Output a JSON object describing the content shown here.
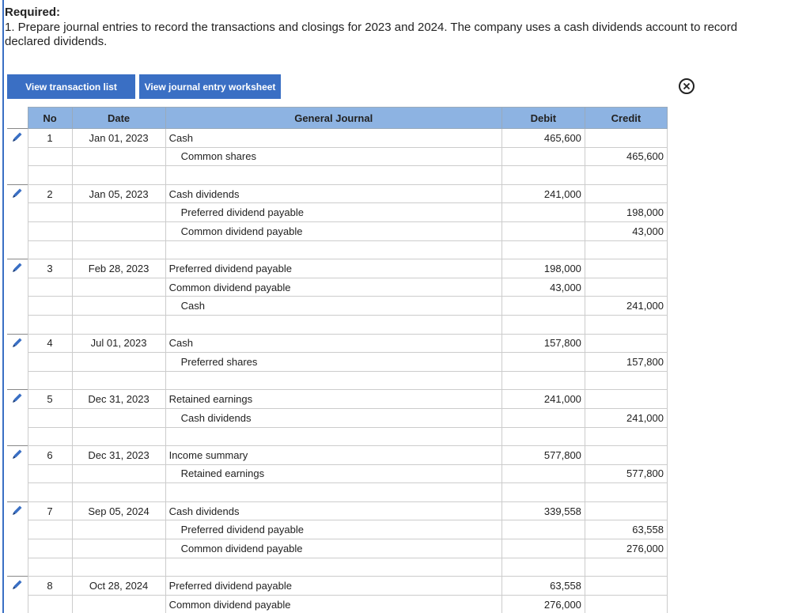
{
  "header": {
    "title": "Required:",
    "instruction": "1. Prepare journal entries to record the transactions and closings for 2023 and 2024. The company uses a cash dividends account to record declared dividends."
  },
  "buttons": [
    "View transaction list",
    "View journal entry worksheet"
  ],
  "table": {
    "columns": [
      "No",
      "Date",
      "General Journal",
      "Debit",
      "Credit"
    ],
    "entries": [
      {
        "no": "1",
        "date": "Jan 01, 2023",
        "lines": [
          {
            "account": "Cash",
            "debit": "465,600"
          },
          {
            "account": "Common shares",
            "credit": "465,600"
          }
        ]
      },
      {
        "no": "2",
        "date": "Jan 05, 2023",
        "lines": [
          {
            "account": "Cash dividends",
            "debit": "241,000"
          },
          {
            "account": "Preferred dividend payable",
            "credit": "198,000"
          },
          {
            "account": "Common dividend payable",
            "credit": "43,000"
          }
        ]
      },
      {
        "no": "3",
        "date": "Feb 28, 2023",
        "lines": [
          {
            "account": "Preferred dividend payable",
            "debit": "198,000"
          },
          {
            "account": "Common dividend payable",
            "debit": "43,000"
          },
          {
            "account": "Cash",
            "credit": "241,000"
          }
        ]
      },
      {
        "no": "4",
        "date": "Jul 01, 2023",
        "lines": [
          {
            "account": "Cash",
            "debit": "157,800"
          },
          {
            "account": "Preferred shares",
            "credit": "157,800"
          }
        ]
      },
      {
        "no": "5",
        "date": "Dec 31, 2023",
        "lines": [
          {
            "account": "Retained earnings",
            "debit": "241,000"
          },
          {
            "account": "Cash dividends",
            "credit": "241,000"
          }
        ]
      },
      {
        "no": "6",
        "date": "Dec 31, 2023",
        "lines": [
          {
            "account": "Income summary",
            "debit": "577,800"
          },
          {
            "account": "Retained earnings",
            "credit": "577,800"
          }
        ]
      },
      {
        "no": "7",
        "date": "Sep 05, 2024",
        "lines": [
          {
            "account": "Cash dividends",
            "debit": "339,558"
          },
          {
            "account": "Preferred dividend payable",
            "credit": "63,558"
          },
          {
            "account": "Common dividend payable",
            "credit": "276,000"
          }
        ]
      },
      {
        "no": "8",
        "date": "Oct 28, 2024",
        "lines": [
          {
            "account": "Preferred dividend payable",
            "debit": "63,558"
          },
          {
            "account": "Common dividend payable",
            "debit": "276,000"
          }
        ]
      }
    ]
  }
}
